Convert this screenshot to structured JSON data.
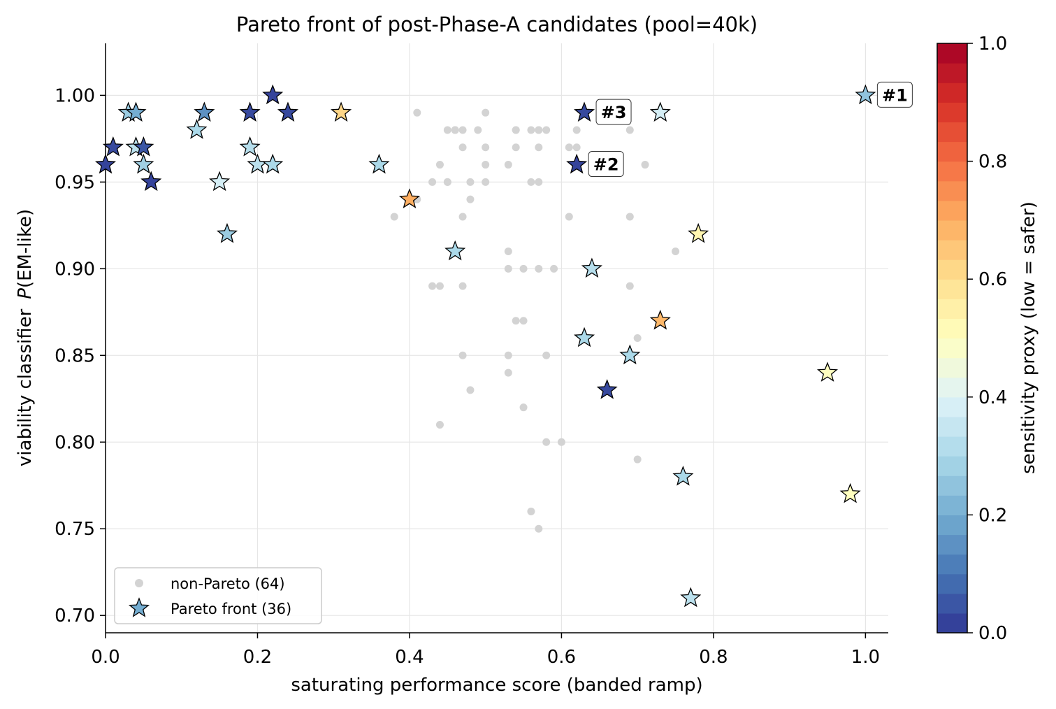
{
  "chart_data": {
    "type": "scatter",
    "title": "Pareto front of post-Phase-A candidates (pool=40k)",
    "xlabel": "saturating performance score (banded ramp)",
    "ylabel_text": "viability classifier",
    "ylabel_math": "P(EM-like)",
    "xlim": [
      0.0,
      1.03
    ],
    "ylim": [
      0.69,
      1.03
    ],
    "xticks": [
      "0.0",
      "0.2",
      "0.4",
      "0.6",
      "0.8",
      "1.0"
    ],
    "yticks": [
      "0.70",
      "0.75",
      "0.80",
      "0.85",
      "0.90",
      "0.95",
      "1.00"
    ],
    "grid": true,
    "legend_position": "lower-left",
    "series": [
      {
        "name": "non-Pareto (64)",
        "marker": "circle",
        "color": "#d3d3d3",
        "points": [
          [
            0.41,
            0.99
          ],
          [
            0.5,
            0.99
          ],
          [
            0.45,
            0.98
          ],
          [
            0.46,
            0.98
          ],
          [
            0.46,
            0.98
          ],
          [
            0.47,
            0.98
          ],
          [
            0.49,
            0.98
          ],
          [
            0.54,
            0.98
          ],
          [
            0.54,
            0.98
          ],
          [
            0.56,
            0.98
          ],
          [
            0.57,
            0.98
          ],
          [
            0.57,
            0.98
          ],
          [
            0.58,
            0.98
          ],
          [
            0.62,
            0.98
          ],
          [
            0.69,
            0.98
          ],
          [
            0.47,
            0.97
          ],
          [
            0.5,
            0.97
          ],
          [
            0.54,
            0.97
          ],
          [
            0.57,
            0.97
          ],
          [
            0.61,
            0.97
          ],
          [
            0.62,
            0.97
          ],
          [
            0.44,
            0.96
          ],
          [
            0.5,
            0.96
          ],
          [
            0.53,
            0.96
          ],
          [
            0.71,
            0.96
          ],
          [
            0.43,
            0.95
          ],
          [
            0.45,
            0.95
          ],
          [
            0.45,
            0.95
          ],
          [
            0.48,
            0.95
          ],
          [
            0.5,
            0.95
          ],
          [
            0.56,
            0.95
          ],
          [
            0.57,
            0.95
          ],
          [
            0.41,
            0.94
          ],
          [
            0.48,
            0.94
          ],
          [
            0.38,
            0.93
          ],
          [
            0.47,
            0.93
          ],
          [
            0.61,
            0.93
          ],
          [
            0.69,
            0.93
          ],
          [
            0.53,
            0.91
          ],
          [
            0.75,
            0.91
          ],
          [
            0.53,
            0.9
          ],
          [
            0.55,
            0.9
          ],
          [
            0.57,
            0.9
          ],
          [
            0.59,
            0.9
          ],
          [
            0.43,
            0.89
          ],
          [
            0.44,
            0.89
          ],
          [
            0.47,
            0.89
          ],
          [
            0.69,
            0.89
          ],
          [
            0.54,
            0.87
          ],
          [
            0.55,
            0.87
          ],
          [
            0.7,
            0.86
          ],
          [
            0.47,
            0.85
          ],
          [
            0.53,
            0.85
          ],
          [
            0.58,
            0.85
          ],
          [
            0.53,
            0.84
          ],
          [
            0.48,
            0.83
          ],
          [
            0.55,
            0.82
          ],
          [
            0.44,
            0.81
          ],
          [
            0.58,
            0.8
          ],
          [
            0.6,
            0.8
          ],
          [
            0.7,
            0.79
          ],
          [
            0.56,
            0.76
          ],
          [
            0.57,
            0.75
          ],
          [
            0.46,
            0.98
          ]
        ]
      },
      {
        "name": "Pareto front (36)",
        "marker": "star",
        "legend_color": "#74add1",
        "points": [
          [
            0.0,
            0.96,
            0.02
          ],
          [
            0.01,
            0.97,
            0.03
          ],
          [
            0.03,
            0.99,
            0.27
          ],
          [
            0.04,
            0.99,
            0.2
          ],
          [
            0.04,
            0.97,
            0.33
          ],
          [
            0.05,
            0.97,
            0.05
          ],
          [
            0.05,
            0.96,
            0.28
          ],
          [
            0.06,
            0.95,
            0.02
          ],
          [
            0.12,
            0.98,
            0.3
          ],
          [
            0.13,
            0.99,
            0.15
          ],
          [
            0.15,
            0.95,
            0.38
          ],
          [
            0.16,
            0.92,
            0.27
          ],
          [
            0.19,
            0.99,
            0.03
          ],
          [
            0.19,
            0.97,
            0.32
          ],
          [
            0.2,
            0.96,
            0.33
          ],
          [
            0.22,
            1.0,
            0.02
          ],
          [
            0.22,
            0.96,
            0.3
          ],
          [
            0.24,
            0.99,
            0.03
          ],
          [
            0.31,
            0.99,
            0.62
          ],
          [
            0.36,
            0.96,
            0.3
          ],
          [
            0.4,
            0.94,
            0.7
          ],
          [
            0.46,
            0.91,
            0.3
          ],
          [
            0.62,
            0.96,
            0.02
          ],
          [
            0.63,
            0.99,
            0.03
          ],
          [
            0.63,
            0.86,
            0.3
          ],
          [
            0.64,
            0.9,
            0.32
          ],
          [
            0.66,
            0.83,
            0.03
          ],
          [
            0.69,
            0.85,
            0.3
          ],
          [
            0.73,
            0.99,
            0.38
          ],
          [
            0.73,
            0.87,
            0.68
          ],
          [
            0.76,
            0.78,
            0.3
          ],
          [
            0.77,
            0.71,
            0.33
          ],
          [
            0.78,
            0.92,
            0.53
          ],
          [
            0.95,
            0.84,
            0.5
          ],
          [
            0.98,
            0.77,
            0.5
          ],
          [
            1.0,
            1.0,
            0.25
          ]
        ]
      }
    ],
    "annotations": [
      {
        "label": "#1",
        "x": 1.0,
        "y": 1.0
      },
      {
        "label": "#2",
        "x": 0.62,
        "y": 0.96
      },
      {
        "label": "#3",
        "x": 0.63,
        "y": 0.99
      }
    ],
    "colorbar": {
      "label": "sensitivity proxy   (low = safer)",
      "range": [
        0.0,
        1.0
      ],
      "ticks": [
        "0.0",
        "0.2",
        "0.4",
        "0.6",
        "0.8",
        "1.0"
      ],
      "colormap": [
        "#313695",
        "#4575b4",
        "#74add1",
        "#abd9e9",
        "#e0f3f8",
        "#ffffbf",
        "#fee090",
        "#fdae61",
        "#f46d43",
        "#d73027",
        "#a50026"
      ]
    }
  }
}
